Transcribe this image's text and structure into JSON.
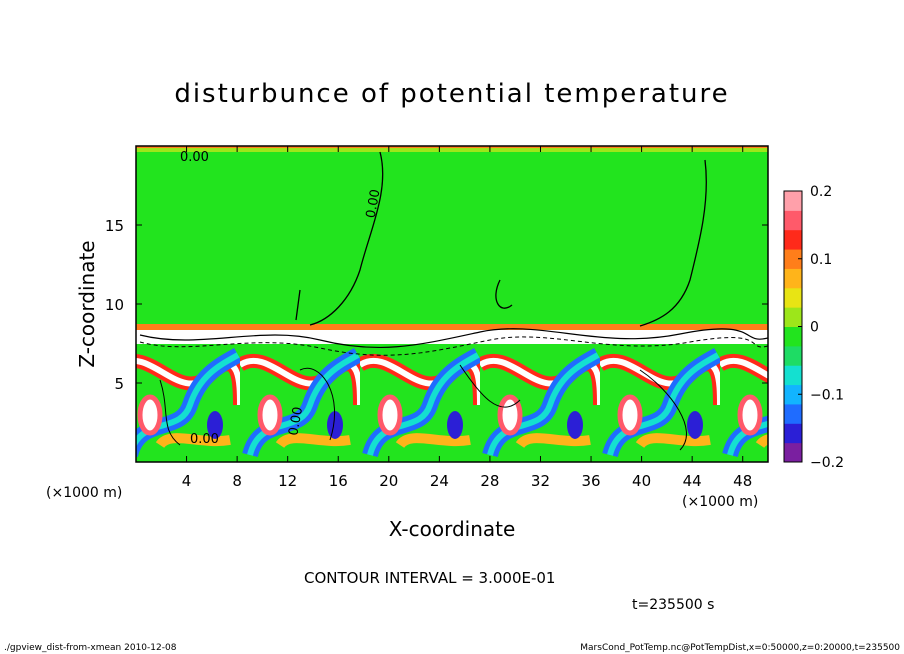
{
  "chart_data": {
    "type": "heatmap",
    "title": "disturbunce of potential temperature",
    "xlabel": "X-coordinate",
    "ylabel": "Z-coordinate",
    "x_unit": "(×1000 m)",
    "y_unit": "(×1000 m)",
    "xlim": [
      0,
      50
    ],
    "ylim": [
      0,
      20
    ],
    "x_ticks": [
      4,
      8,
      12,
      16,
      20,
      24,
      28,
      32,
      36,
      40,
      44,
      48
    ],
    "y_ticks": [
      5,
      10,
      15
    ],
    "colorbar": {
      "range": [
        -0.2,
        0.2
      ],
      "ticks": [
        {
          "value": 0.2,
          "label": "0.2"
        },
        {
          "value": 0.1,
          "label": "0.1"
        },
        {
          "value": 0,
          "label": "0"
        },
        {
          "value": -0.1,
          "label": "−0.1"
        },
        {
          "value": -0.2,
          "label": "−0.2"
        }
      ],
      "colors": [
        "#7a1fa0",
        "#2b1fd6",
        "#1f6cff",
        "#12b4ff",
        "#14e0d0",
        "#1edc64",
        "#22e41e",
        "#9de61a",
        "#e8e414",
        "#ffb41a",
        "#ff7e1a",
        "#ff2a1a",
        "#ff5a6a",
        "#ffa0aa"
      ]
    },
    "contour_interval": "CONTOUR INTERVAL = 3.000E-01",
    "contour_labels": [
      "0.00"
    ],
    "time_label": "t=235500 s"
  },
  "footer": {
    "left": "./gpview_dist-from-xmean   2010-12-08",
    "right": "MarsCond_PotTemp.nc@PotTempDist,x=0:50000,z=0:20000,t=235500"
  }
}
